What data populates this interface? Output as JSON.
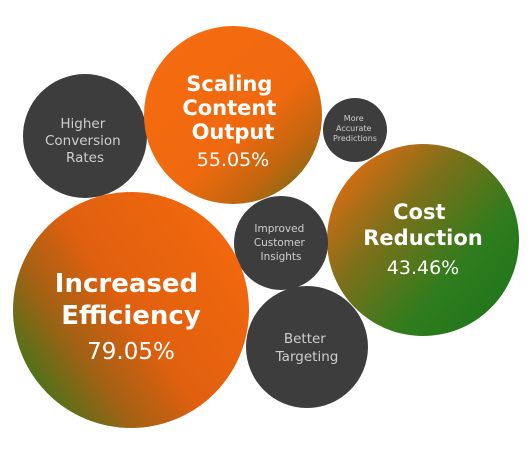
{
  "colors": {
    "orange": "#f26a10",
    "green": "#1f7a1c",
    "dark_gray": "#3d3d3d",
    "text_white": "#ffffff",
    "text_gray": "#cfcfcf"
  },
  "chart_data": {
    "type": "bubble",
    "title": "",
    "bubbles": [
      {
        "label": "Increased Efficiency",
        "value": "79.05%",
        "percent": 79.05,
        "style": "gradient"
      },
      {
        "label": "Scaling Content Output",
        "value": "55.05%",
        "percent": 55.05,
        "style": "gradient"
      },
      {
        "label": "Cost Reduction",
        "value": "43.46%",
        "percent": 43.46,
        "style": "gradient"
      },
      {
        "label": "Higher Conversion Rates",
        "value": "",
        "style": "gray"
      },
      {
        "label": "More Accurate Predictions",
        "value": "",
        "style": "gray"
      },
      {
        "label": "Improved Customer Insights",
        "value": "",
        "style": "gray"
      },
      {
        "label": "Better Targeting",
        "value": "",
        "style": "gray"
      }
    ]
  }
}
